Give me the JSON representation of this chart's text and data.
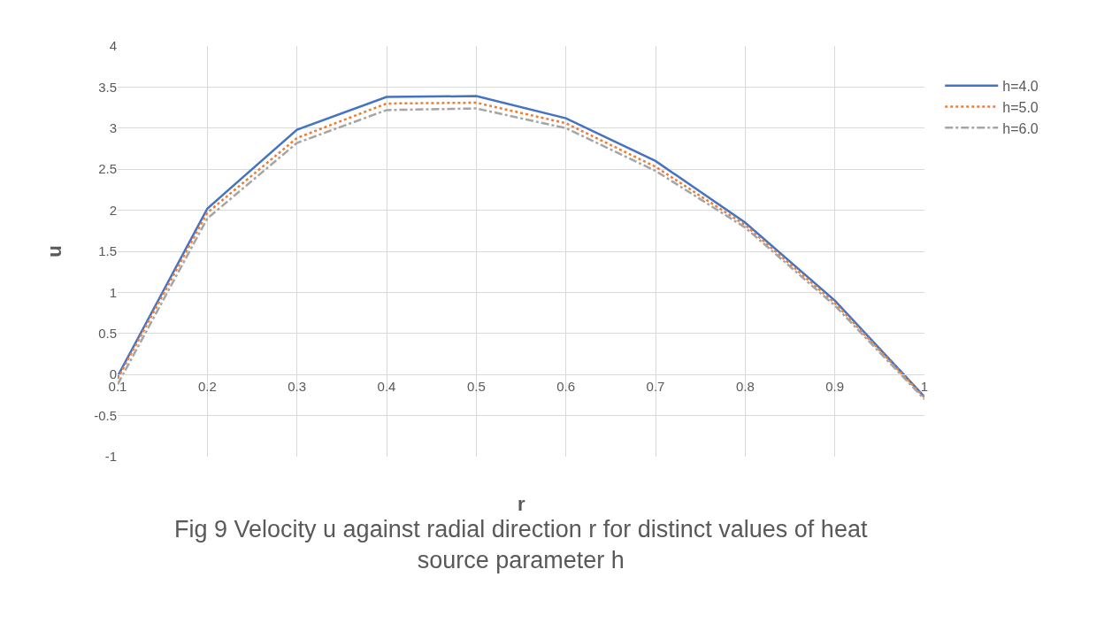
{
  "chart_data": {
    "type": "line",
    "xlabel": "r",
    "ylabel": "u",
    "x": [
      0.1,
      0.2,
      0.3,
      0.4,
      0.5,
      0.6,
      0.7,
      0.8,
      0.9,
      1
    ],
    "series": [
      {
        "name": "h=4.0",
        "color": "#4472c4",
        "line_style": "solid",
        "values": [
          -0.02,
          2.02,
          2.98,
          3.38,
          3.39,
          3.12,
          2.6,
          1.85,
          0.9,
          -0.27
        ]
      },
      {
        "name": "h=5.0",
        "color": "#ed7d31",
        "line_style": "dotted",
        "values": [
          -0.05,
          1.97,
          2.88,
          3.3,
          3.31,
          3.06,
          2.53,
          1.82,
          0.87,
          -0.28
        ]
      },
      {
        "name": "h=6.0",
        "color": "#a5a5a5",
        "line_style": "dashed",
        "values": [
          -0.12,
          1.9,
          2.82,
          3.22,
          3.24,
          3.0,
          2.48,
          1.79,
          0.84,
          -0.3
        ]
      }
    ],
    "xlim": [
      0.1,
      1
    ],
    "xticks": [
      0.1,
      0.2,
      0.3,
      0.4,
      0.5,
      0.6,
      0.7,
      0.8,
      0.9,
      1
    ],
    "ylim": [
      -1,
      4
    ],
    "yticks": [
      -1,
      -0.5,
      0,
      0.5,
      1,
      1.5,
      2,
      2.5,
      3,
      3.5,
      4
    ],
    "grid": true,
    "legend": "right",
    "marker": "none",
    "annotations": [
      "Fig 9 Velocity u against radial direction r for distinct values of heat source parameter h"
    ]
  }
}
